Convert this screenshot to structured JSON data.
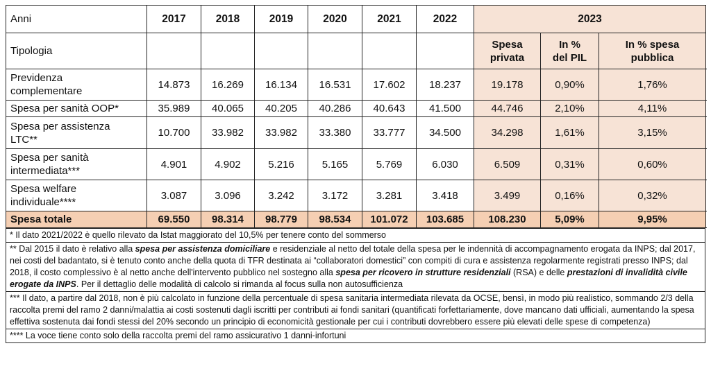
{
  "header": {
    "anni_label": "Anni",
    "tipologia_label": "Tipologia",
    "years": [
      "2017",
      "2018",
      "2019",
      "2020",
      "2021",
      "2022"
    ],
    "year_2023": "2023",
    "sub_cols": [
      {
        "line1": "Spesa",
        "line2": "privata"
      },
      {
        "line1": "In %",
        "line2": "del PIL"
      },
      {
        "line1": "In % spesa",
        "line2": "pubblica"
      }
    ]
  },
  "rows": [
    {
      "label_l1": "Previdenza",
      "label_l2": "complementare",
      "values": [
        "14.873",
        "16.269",
        "16.134",
        "16.531",
        "17.602",
        "18.237"
      ],
      "spesa": "19.178",
      "pil": "0,90%",
      "pubblica": "1,76%"
    },
    {
      "label_l1": "Spesa per sanità OOP*",
      "label_l2": "",
      "values": [
        "35.989",
        "40.065",
        "40.205",
        "40.286",
        "40.643",
        "41.500"
      ],
      "spesa": "44.746",
      "pil": "2,10%",
      "pubblica": "4,11%"
    },
    {
      "label_l1": "Spesa per assistenza",
      "label_l2": "LTC**",
      "values": [
        "10.700",
        "33.982",
        "33.982",
        "33.380",
        "33.777",
        "34.500"
      ],
      "spesa": "34.298",
      "pil": "1,61%",
      "pubblica": "3,15%"
    },
    {
      "label_l1": "Spesa per sanità",
      "label_l2": "intermediata***",
      "values": [
        "4.901",
        "4.902",
        "5.216",
        "5.165",
        "5.769",
        "6.030"
      ],
      "spesa": "6.509",
      "pil": "0,31%",
      "pubblica": "0,60%"
    },
    {
      "label_l1": "Spesa welfare",
      "label_l2": "individuale****",
      "values": [
        "3.087",
        "3.096",
        "3.242",
        "3.172",
        "3.281",
        "3.418"
      ],
      "spesa": "3.499",
      "pil": "0,16%",
      "pubblica": "0,32%"
    }
  ],
  "total": {
    "label": "Spesa totale",
    "values": [
      "69.550",
      "98.314",
      "98.779",
      "98.534",
      "101.072",
      "103.685"
    ],
    "spesa": "108.230",
    "pil": "5,09%",
    "pubblica": "9,95%"
  },
  "notes": {
    "n1": "* Il dato 2021/2022 è quello rilevato da Istat maggiorato del 10,5% per tenere conto del sommerso",
    "n2_a": "** Dal 2015 il dato è relativo alla ",
    "n2_b": "spesa per assistenza domiciliare",
    "n2_c": " e residenziale al netto del totale della spesa per le indennità di accompagnamento erogata da INPS; dal 2017, nei costi del badantato, si è tenuto conto anche della quota di TFR destinata ai “collaboratori domestici” con compiti di cura e assistenza regolarmente registrati presso INPS; dal 2018, il costo complessivo è al netto anche dell'intervento pubblico nel sostegno alla ",
    "n2_d": "spesa per ricovero in strutture residenziali",
    "n2_e": " (RSA) e delle ",
    "n2_f": "prestazioni di invalidità civile erogate da INPS",
    "n2_g": ". Per il dettaglio delle modalità di calcolo si rimanda al focus sulla non autosufficienza",
    "n3": "*** Il dato, a partire dal 2018, non è più calcolato in funzione della percentuale di spesa sanitaria intermediata rilevata da OCSE, bensì, in modo più realistico, sommando 2/3 della raccolta premi del ramo 2 danni/malattia ai costi sostenuti dagli iscritti per contributi ai fondi sanitari (quantificati forfettariamente, dove mancano dati ufficiali, aumentando la spesa effettiva sostenuta dai fondi stessi del 20% secondo un principio di economicità gestionale per cui i contributi dovrebbero essere più elevati delle spese di competenza)",
    "n4": "**** La voce tiene conto solo della raccolta premi del ramo assicurativo 1 danni-infortuni"
  }
}
